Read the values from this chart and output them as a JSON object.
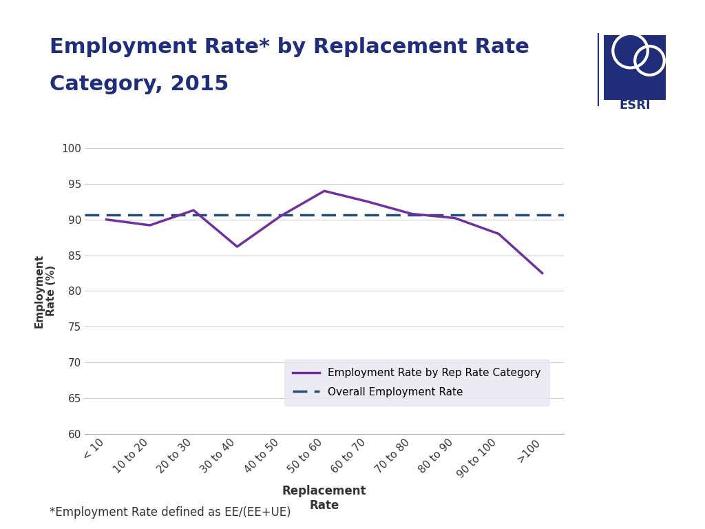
{
  "title_line1": "Employment Rate* by Replacement Rate",
  "title_line2": "Category, 2015",
  "title_color": "#1f2d7b",
  "categories": [
    "< 10",
    "10 to 20",
    "20 to 30",
    "30 to 40",
    "40 to 50",
    "50 to 60",
    "60 to 70",
    "70 to 80",
    "80 to 90",
    "90 to 100",
    ">100"
  ],
  "emp_rate_values": [
    90.0,
    89.2,
    91.3,
    86.2,
    90.5,
    94.0,
    92.5,
    90.8,
    90.2,
    88.0,
    82.5
  ],
  "overall_rate": 90.6,
  "line_color": "#7030a0",
  "dashed_color": "#1f4e79",
  "ylabel": "Employment\nRate (%)",
  "xlabel": "Replacement\nRate",
  "ylim_min": 60,
  "ylim_max": 100,
  "yticks": [
    60,
    65,
    70,
    75,
    80,
    85,
    90,
    95,
    100
  ],
  "footnote": "*Employment Rate defined as EE/(EE+UE)",
  "legend_bg": "#e8e6f0",
  "background_color": "#ffffff"
}
